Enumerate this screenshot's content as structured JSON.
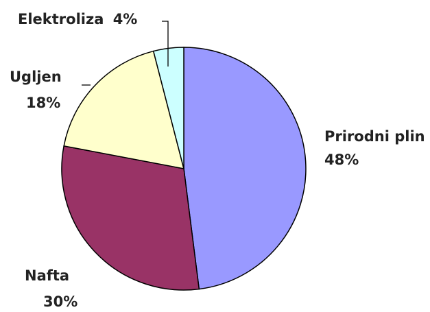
{
  "chart_data": {
    "type": "pie",
    "title": "",
    "start_angle_deg": 0,
    "direction": "clockwise",
    "slices": [
      {
        "label": "Prirodni plin",
        "value": 48,
        "value_label": "48%",
        "color": "#9999ff"
      },
      {
        "label": "Nafta",
        "value": 30,
        "value_label": "30%",
        "color": "#993366"
      },
      {
        "label": "Ugljen",
        "value": 18,
        "value_label": "18%",
        "color": "#ffffcc"
      },
      {
        "label": "Elektroliza",
        "value": 4,
        "value_label": "4%",
        "color": "#ccffff"
      }
    ],
    "legend": "none",
    "labels_position": "outside"
  }
}
